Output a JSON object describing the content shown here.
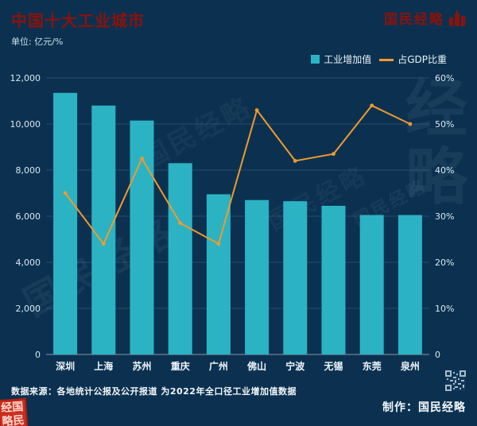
{
  "header": {
    "title": "中国十大工业城市",
    "unit": "单位: 亿元/%",
    "brand": "国民经略"
  },
  "legend": {
    "bar_label": "工业增加值",
    "line_label": "占GDP比重"
  },
  "chart_data": {
    "type": "bar+line",
    "categories": [
      "深圳",
      "上海",
      "苏州",
      "重庆",
      "广州",
      "佛山",
      "宁波",
      "无锡",
      "东莞",
      "泉州"
    ],
    "series": [
      {
        "name": "工业增加值",
        "type": "bar",
        "axis": "left",
        "color": "#2bb3c4",
        "values": [
          11350,
          10800,
          10150,
          8300,
          6950,
          6700,
          6650,
          6450,
          6050,
          6050
        ]
      },
      {
        "name": "占GDP比重",
        "type": "line",
        "axis": "right",
        "color": "#ef9a2d",
        "values": [
          35,
          24,
          42.5,
          28.5,
          24,
          53,
          42,
          43.5,
          54,
          50
        ]
      }
    ],
    "left_axis": {
      "min": 0,
      "max": 12000,
      "step": 2000,
      "ticks": [
        "0",
        "2,000",
        "4,000",
        "6,000",
        "8,000",
        "10,000",
        "12,000"
      ]
    },
    "right_axis": {
      "min": 0,
      "max": 60,
      "step": 10,
      "ticks": [
        "0",
        "10%",
        "20%",
        "30%",
        "40%",
        "50%",
        "60%"
      ]
    },
    "grid": true,
    "legend_position": "top-right"
  },
  "footer": {
    "source": "数据来源：各地统计公报及公开报道 为2022年全口径工业增加值数据",
    "credit": "制作：国民经略"
  },
  "watermark": {
    "text": "国民经略",
    "big_chars": "经略"
  },
  "seal": {
    "line1": "经国",
    "line2": "略民"
  },
  "colors": {
    "background": "#0c3150",
    "bar": "#2bb3c4",
    "line": "#ef9a2d",
    "title": "#8c120b"
  }
}
